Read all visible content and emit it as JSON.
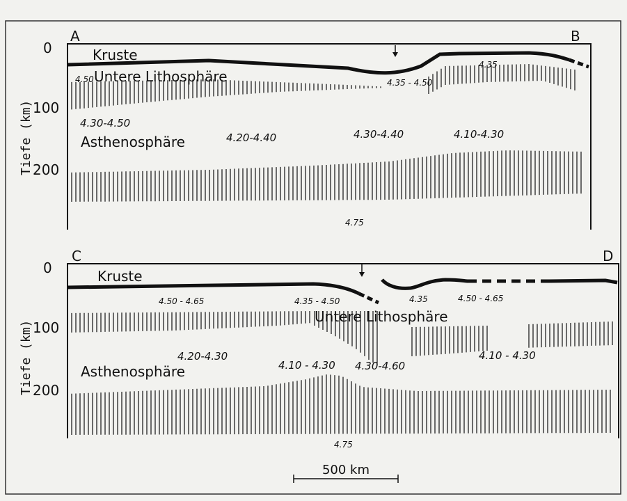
{
  "colors": {
    "background": "#f2f2ef",
    "frame": "#333333",
    "ink": "#111111"
  },
  "panels": [
    {
      "id": "ab",
      "corner_left": "A",
      "corner_right": "B",
      "y_axis_title": "Tiefe (km)",
      "y_ticks": [
        "0",
        "100",
        "200"
      ],
      "depth_range_km": [
        0,
        290
      ],
      "layers": {
        "crust": "Kruste",
        "lower_lithosphere": "Untere Lithosphäre",
        "asthenosphere": "Asthenosphäre"
      },
      "velocities": {
        "crust_base_left": "4.50",
        "lith_left": "4.30-4.50",
        "asth_left": "4.20-4.40",
        "center_upper": "4.35 - 4.50",
        "asth_center": "4.30-4.40",
        "right_upper": "4.35",
        "asth_right": "4.10-4.30",
        "deep": "4.75"
      }
    },
    {
      "id": "cd",
      "corner_left": "C",
      "corner_right": "D",
      "y_axis_title": "Tiefe (km)",
      "y_ticks": [
        "0",
        "100",
        "200"
      ],
      "depth_range_km": [
        0,
        290
      ],
      "layers": {
        "crust": "Kruste",
        "lower_lithosphere": "Untere Lithosphäre",
        "asthenosphere": "Asthenosphäre"
      },
      "velocities": {
        "lith_left": "4.50 - 4.65",
        "lith_center": "4.35 - 4.50",
        "right_crust": "4.35",
        "lith_right": "4.50 - 4.65",
        "asth_left": "4.20-4.30",
        "asth_center": "4.10 - 4.30",
        "trench": "4.30-4.60",
        "asth_right": "4.10 - 4.30",
        "deep": "4.75"
      }
    }
  ],
  "scale_bar": {
    "label": "500 km",
    "length_km": 500
  }
}
